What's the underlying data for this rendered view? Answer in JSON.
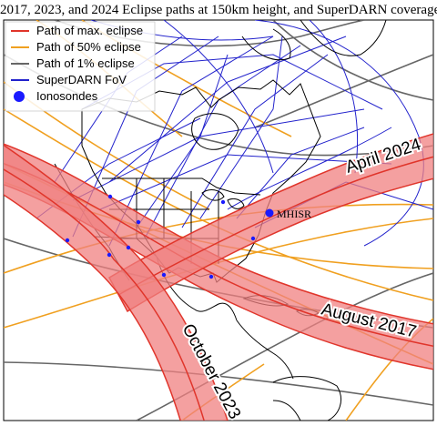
{
  "title": "2017, 2023, and 2024 Eclipse paths at 150km height, and SuperDARN coverage",
  "legend": {
    "items": [
      {
        "label": "Path of max. eclipse",
        "color": "#e0352b",
        "kind": "line"
      },
      {
        "label": "Path of 50% eclipse",
        "color": "#f0a020",
        "kind": "line"
      },
      {
        "label": "Path of  1% eclipse",
        "color": "#666666",
        "kind": "line"
      },
      {
        "label": "SuperDARN FoV",
        "color": "#2222cc",
        "kind": "line"
      },
      {
        "label": "Ionosondes",
        "color": "#1a1aff",
        "kind": "dot"
      }
    ]
  },
  "path_labels": {
    "april_2024": "April 2024",
    "august_2017": "August 2017",
    "october_2023": "October 2023"
  },
  "station_label": "MHISR",
  "colors": {
    "max_eclipse": "#e0352b",
    "band_fill": "#f08080",
    "fifty_pct": "#f0a020",
    "one_pct": "#666666",
    "superdarn": "#2222cc",
    "ionosonde": "#1a1aff",
    "coast": "#000000"
  }
}
